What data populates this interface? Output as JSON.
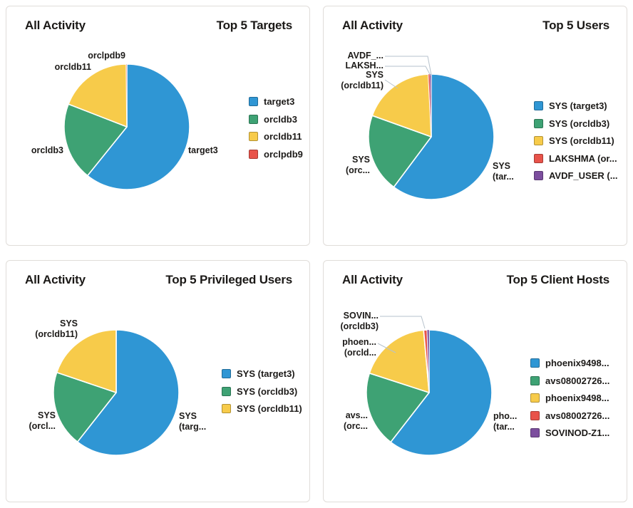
{
  "palette": {
    "blue": "#2F96D4",
    "green": "#3EA274",
    "yellow": "#F7CB4A",
    "red": "#E8534A",
    "purple": "#7C4E9E",
    "leader_line": "#B6C2CC",
    "text": "#1B1917",
    "card_border": "#E0DDD9"
  },
  "cards": [
    {
      "subtitle": "All Activity",
      "title": "Top 5 Targets",
      "chart_data": {
        "type": "pie",
        "legend_position": "right",
        "series": [
          {
            "label": "target3",
            "value_pct": 60.8,
            "color": "#2F96D4"
          },
          {
            "label": "orcldb3",
            "value_pct": 20.1,
            "color": "#3EA274"
          },
          {
            "label": "orcldb11",
            "value_pct": 18.95,
            "color": "#F7CB4A"
          },
          {
            "label": "orclpdb9",
            "value_pct": 0.15,
            "color": "#E8534A"
          }
        ]
      },
      "outer_labels": [
        {
          "lines": [
            "orclpdb9"
          ]
        },
        {
          "lines": [
            "orcldb11"
          ]
        },
        {
          "lines": [
            "orcldb3"
          ]
        },
        {
          "lines": [
            "target3"
          ]
        }
      ]
    },
    {
      "subtitle": "All Activity",
      "title": "Top 5 Users",
      "chart_data": {
        "type": "pie",
        "legend_position": "right",
        "series": [
          {
            "label": "SYS (target3)",
            "value_pct": 60.2,
            "color": "#2F96D4"
          },
          {
            "label": "SYS (orcldb3)",
            "value_pct": 20.3,
            "color": "#3EA274"
          },
          {
            "label": "SYS (orcldb11)",
            "value_pct": 18.75,
            "color": "#F7CB4A"
          },
          {
            "label": "LAKSHMA (or...",
            "value_pct": 0.4,
            "color": "#E8534A"
          },
          {
            "label": "AVDF_USER (...",
            "value_pct": 0.35,
            "color": "#7C4E9E"
          }
        ]
      },
      "outer_labels": [
        {
          "lines": [
            "AVDF_..."
          ]
        },
        {
          "lines": [
            "LAKSH..."
          ]
        },
        {
          "lines": [
            "SYS",
            "(orcldb11)"
          ]
        },
        {
          "lines": [
            "SYS",
            "(orc..."
          ]
        },
        {
          "lines": [
            "SYS",
            "(tar..."
          ]
        }
      ]
    },
    {
      "subtitle": "All Activity",
      "title": "Top 5 Privileged Users",
      "chart_data": {
        "type": "pie",
        "legend_position": "right",
        "series": [
          {
            "label": "SYS (target3)",
            "value_pct": 60.6,
            "color": "#2F96D4"
          },
          {
            "label": "SYS (orcldb3)",
            "value_pct": 19.6,
            "color": "#3EA274"
          },
          {
            "label": "SYS (orcldb11)",
            "value_pct": 19.8,
            "color": "#F7CB4A"
          }
        ]
      },
      "outer_labels": [
        {
          "lines": [
            "SYS",
            "(orcldb11)"
          ]
        },
        {
          "lines": [
            "SYS",
            "(orcl..."
          ]
        },
        {
          "lines": [
            "SYS",
            "(targ..."
          ]
        }
      ]
    },
    {
      "subtitle": "All Activity",
      "title": "Top 5 Client Hosts",
      "chart_data": {
        "type": "pie",
        "legend_position": "right",
        "series": [
          {
            "label": "phoenix9498...",
            "value_pct": 60.5,
            "color": "#2F96D4"
          },
          {
            "label": "avs08002726...",
            "value_pct": 19.5,
            "color": "#3EA274"
          },
          {
            "label": "phoenix9498...",
            "value_pct": 18.6,
            "color": "#F7CB4A"
          },
          {
            "label": "avs08002726...",
            "value_pct": 0.9,
            "color": "#E8534A"
          },
          {
            "label": "SOVINOD-Z1...",
            "value_pct": 0.5,
            "color": "#7C4E9E"
          }
        ]
      },
      "outer_labels": [
        {
          "lines": [
            "SOVIN...",
            "(orcldb3)"
          ]
        },
        {
          "lines": [
            "phoen...",
            "(orcld..."
          ]
        },
        {
          "lines": [
            "avs...",
            "(orc..."
          ]
        },
        {
          "lines": [
            "pho...",
            "(tar..."
          ]
        }
      ]
    }
  ]
}
